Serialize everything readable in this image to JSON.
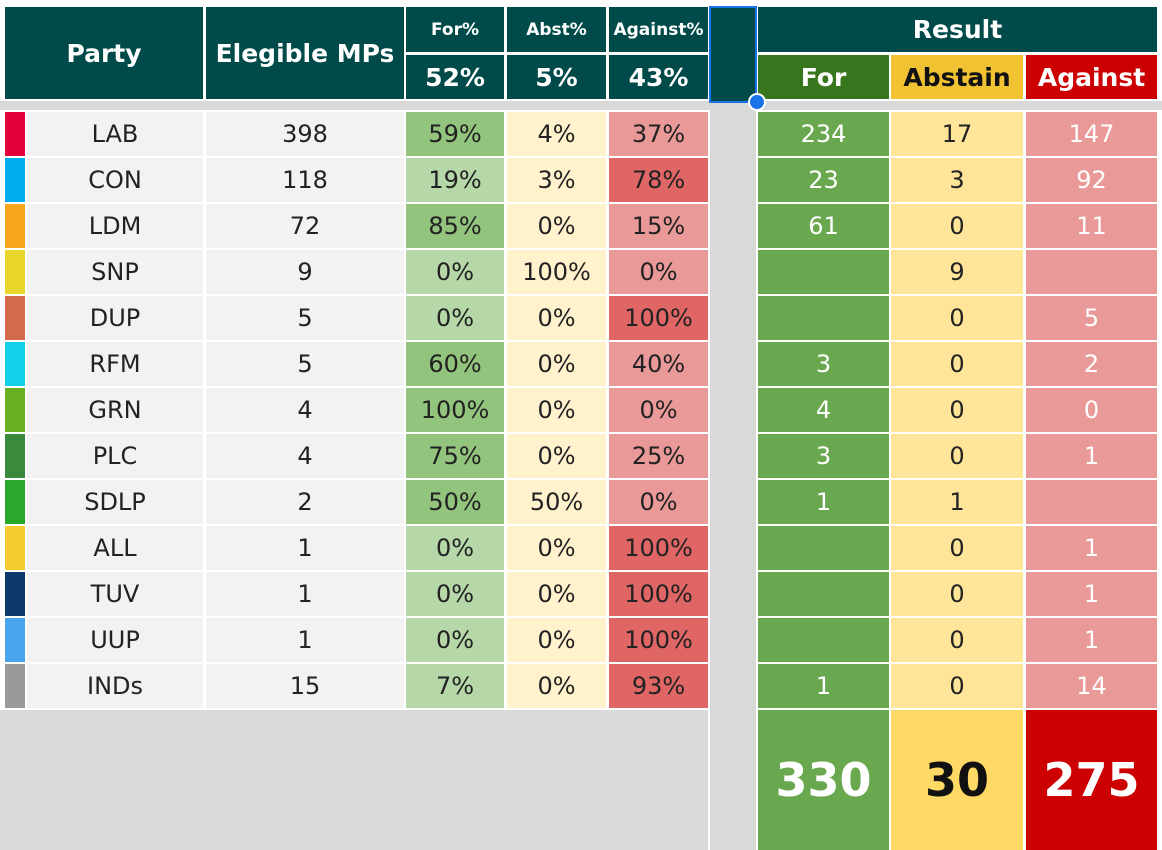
{
  "headers": {
    "party": "Party",
    "mps": "Elegible MPs",
    "for_pct_label": "For%",
    "abst_pct_label": "Abst%",
    "against_pct_label": "Against%",
    "for_pct_total": "52%",
    "abst_pct_total": "5%",
    "against_pct_total": "43%",
    "result": "Result",
    "for": "For",
    "abstain": "Abstain",
    "against": "Against"
  },
  "rows": [
    {
      "party": "LAB",
      "color": "#e4003b",
      "mps": "398",
      "for_pct": "59%",
      "abst_pct": "4%",
      "against_pct": "37%",
      "for": "234",
      "abstain": "17",
      "against": "147"
    },
    {
      "party": "CON",
      "color": "#00aeef",
      "mps": "118",
      "for_pct": "19%",
      "abst_pct": "3%",
      "against_pct": "78%",
      "for": "23",
      "abstain": "3",
      "against": "92"
    },
    {
      "party": "LDM",
      "color": "#faa61a",
      "mps": "72",
      "for_pct": "85%",
      "abst_pct": "0%",
      "against_pct": "15%",
      "for": "61",
      "abstain": "0",
      "against": "11"
    },
    {
      "party": "SNP",
      "color": "#e8d62a",
      "mps": "9",
      "for_pct": "0%",
      "abst_pct": "100%",
      "against_pct": "0%",
      "for": "",
      "abstain": "9",
      "against": ""
    },
    {
      "party": "DUP",
      "color": "#d46a4c",
      "mps": "5",
      "for_pct": "0%",
      "abst_pct": "0%",
      "against_pct": "100%",
      "for": "",
      "abstain": "0",
      "against": "5"
    },
    {
      "party": "RFM",
      "color": "#12d0e8",
      "mps": "5",
      "for_pct": "60%",
      "abst_pct": "0%",
      "against_pct": "40%",
      "for": "3",
      "abstain": "0",
      "against": "2"
    },
    {
      "party": "GRN",
      "color": "#6ab023",
      "mps": "4",
      "for_pct": "100%",
      "abst_pct": "0%",
      "against_pct": "0%",
      "for": "4",
      "abstain": "0",
      "against": "0"
    },
    {
      "party": "PLC",
      "color": "#3a8a3c",
      "mps": "4",
      "for_pct": "75%",
      "abst_pct": "0%",
      "against_pct": "25%",
      "for": "3",
      "abstain": "0",
      "against": "1"
    },
    {
      "party": "SDLP",
      "color": "#2aa82c",
      "mps": "2",
      "for_pct": "50%",
      "abst_pct": "50%",
      "against_pct": "0%",
      "for": "1",
      "abstain": "1",
      "against": ""
    },
    {
      "party": "ALL",
      "color": "#f6cb2f",
      "mps": "1",
      "for_pct": "0%",
      "abst_pct": "0%",
      "against_pct": "100%",
      "for": "",
      "abstain": "0",
      "against": "1"
    },
    {
      "party": "TUV",
      "color": "#0c3a6a",
      "mps": "1",
      "for_pct": "0%",
      "abst_pct": "0%",
      "against_pct": "100%",
      "for": "",
      "abstain": "0",
      "against": "1"
    },
    {
      "party": "UUP",
      "color": "#48a5ee",
      "mps": "1",
      "for_pct": "0%",
      "abst_pct": "0%",
      "against_pct": "100%",
      "for": "",
      "abstain": "0",
      "against": "1"
    },
    {
      "party": "INDs",
      "color": "#999999",
      "mps": "15",
      "for_pct": "7%",
      "abst_pct": "0%",
      "against_pct": "93%",
      "for": "1",
      "abstain": "0",
      "against": "14"
    }
  ],
  "totals": {
    "for": "330",
    "abstain": "30",
    "against": "275"
  },
  "colors": {
    "header_bg": "#004b4a",
    "for_header": "#38761d",
    "abstain_header": "#f1c232",
    "against_header": "#cc0000",
    "for_cell": "#6aa84f",
    "abstain_cell": "#ffe599",
    "against_cell": "#ea9999",
    "total_for": "#6aa84f",
    "total_abstain": "#ffd966",
    "total_against": "#cc0000",
    "selection": "#1a73e8"
  }
}
